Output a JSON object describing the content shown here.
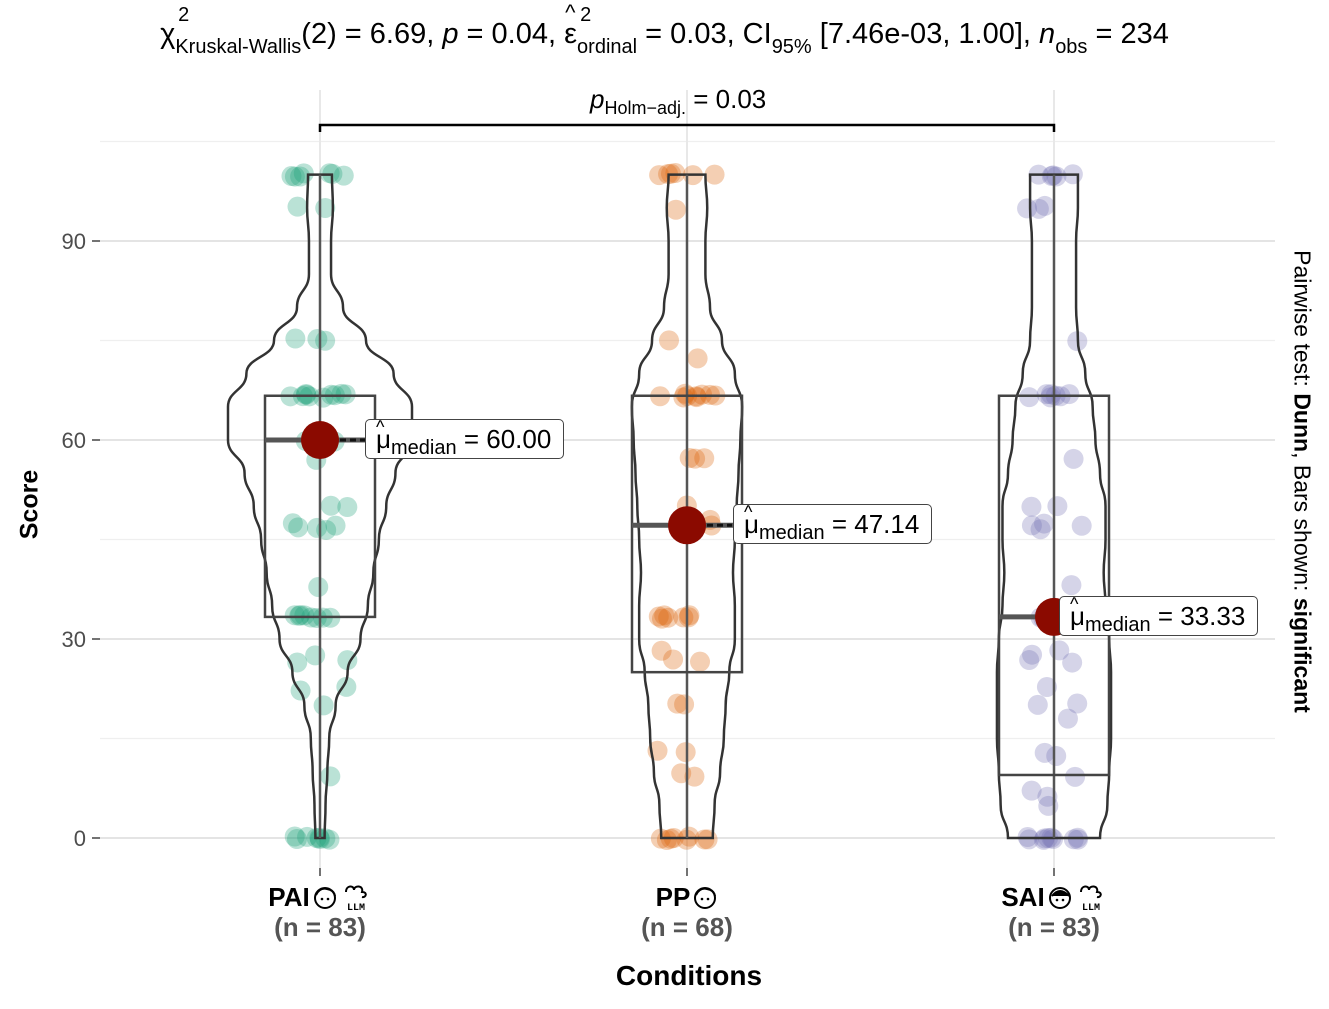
{
  "title": {
    "stat_symbol": "χ",
    "stat_sub": "Kruskal-Wallis",
    "df": "(2) = 6.69, ",
    "p": "p",
    "p_val": " = 0.04, ",
    "eps_sym": "ε",
    "eps_sub": "ordinal",
    "eps_val": " = 0.03, CI",
    "ci_sub": "95%",
    "ci_val": " [7.46e-03, 1.00], ",
    "n": "n",
    "n_sub": "obs",
    "n_val": " = 234"
  },
  "pairwise": {
    "p": "p",
    "sub": "Holm−adj.",
    "val": " = 0.03"
  },
  "side_label": {
    "prefix": "Pairwise test: ",
    "test": "Dunn",
    "middle": ", Bars shown: ",
    "shown": "significant"
  },
  "chart_data": {
    "type": "violin-box",
    "ylabel": "Score",
    "xlabel": "Conditions",
    "ylim": [
      -4,
      108
    ],
    "yticks": [
      0,
      30,
      60,
      90
    ],
    "grid": true,
    "groups": [
      {
        "name": "PAI",
        "n_label": "(n = 83)",
        "color": "#1b9e77",
        "median": 60.0,
        "median_label": "= 60.00",
        "box": {
          "q1": 33.33,
          "median": 60,
          "q3": 66.67,
          "min": 0,
          "max": 100
        },
        "violin": [
          [
            0,
            0.05
          ],
          [
            5,
            0.06
          ],
          [
            10,
            0.08
          ],
          [
            15,
            0.1
          ],
          [
            20,
            0.17
          ],
          [
            25,
            0.3
          ],
          [
            30,
            0.44
          ],
          [
            35,
            0.52
          ],
          [
            40,
            0.58
          ],
          [
            45,
            0.64
          ],
          [
            50,
            0.72
          ],
          [
            55,
            0.82
          ],
          [
            60,
            1.0
          ],
          [
            65,
            1.0
          ],
          [
            70,
            0.8
          ],
          [
            75,
            0.5
          ],
          [
            80,
            0.25
          ],
          [
            85,
            0.12
          ],
          [
            90,
            0.12
          ],
          [
            95,
            0.14
          ],
          [
            100,
            0.13
          ]
        ],
        "points": [
          0,
          0,
          0,
          0,
          0,
          0,
          0,
          0,
          9.5,
          20,
          22.5,
          22.5,
          26.5,
          27,
          27.5,
          33.33,
          33.33,
          33.33,
          33.33,
          33.33,
          33.33,
          33.33,
          33.33,
          38,
          46.5,
          47,
          47,
          47,
          47.5,
          50,
          50,
          57,
          60,
          60,
          60,
          60,
          66.67,
          66.67,
          66.67,
          66.67,
          66.67,
          66.67,
          66.67,
          66.67,
          66.67,
          66.67,
          75,
          75,
          75,
          95,
          95,
          100,
          100,
          100,
          100,
          100,
          100,
          100
        ]
      },
      {
        "name": "PP",
        "n_label": "(n = 68)",
        "color": "#d95f02",
        "median": 47.14,
        "median_label": "= 47.14",
        "box": {
          "q1": 25,
          "median": 47.14,
          "q3": 66.67,
          "min": 0,
          "max": 100
        },
        "violin": [
          [
            0,
            0.28
          ],
          [
            5,
            0.3
          ],
          [
            10,
            0.36
          ],
          [
            15,
            0.4
          ],
          [
            20,
            0.42
          ],
          [
            25,
            0.46
          ],
          [
            30,
            0.52
          ],
          [
            35,
            0.52
          ],
          [
            40,
            0.5
          ],
          [
            45,
            0.52
          ],
          [
            50,
            0.54
          ],
          [
            55,
            0.56
          ],
          [
            60,
            0.58
          ],
          [
            65,
            0.6
          ],
          [
            70,
            0.52
          ],
          [
            75,
            0.38
          ],
          [
            80,
            0.25
          ],
          [
            85,
            0.2
          ],
          [
            90,
            0.2
          ],
          [
            95,
            0.22
          ],
          [
            100,
            0.2
          ]
        ],
        "points": [
          0,
          0,
          0,
          0,
          0,
          0,
          0,
          0,
          9.5,
          10,
          13,
          13,
          20,
          20,
          26.5,
          27,
          28,
          33.33,
          33.33,
          33.33,
          33.33,
          33.33,
          33.33,
          33.33,
          47,
          47,
          47,
          48,
          50,
          57,
          57,
          57,
          66.67,
          66.67,
          66.67,
          66.67,
          66.67,
          66.67,
          66.67,
          66.67,
          66.67,
          72.5,
          75,
          95,
          100,
          100,
          100,
          100,
          100,
          100
        ]
      },
      {
        "name": "SAI",
        "n_label": "(n = 83)",
        "color": "#7570b3",
        "median": 33.33,
        "median_label": "= 33.33",
        "box": {
          "q1": 9.5,
          "median": 33.33,
          "q3": 66.67,
          "min": 0,
          "max": 100
        },
        "violin": [
          [
            0,
            0.5
          ],
          [
            5,
            0.58
          ],
          [
            10,
            0.6
          ],
          [
            15,
            0.62
          ],
          [
            20,
            0.62
          ],
          [
            25,
            0.62
          ],
          [
            30,
            0.6
          ],
          [
            35,
            0.56
          ],
          [
            40,
            0.54
          ],
          [
            45,
            0.56
          ],
          [
            50,
            0.56
          ],
          [
            55,
            0.5
          ],
          [
            60,
            0.45
          ],
          [
            65,
            0.42
          ],
          [
            70,
            0.34
          ],
          [
            75,
            0.26
          ],
          [
            80,
            0.24
          ],
          [
            85,
            0.24
          ],
          [
            90,
            0.24
          ],
          [
            95,
            0.26
          ],
          [
            100,
            0.26
          ]
        ],
        "points": [
          0,
          0,
          0,
          0,
          0,
          0,
          0,
          0,
          0,
          0,
          5,
          6.5,
          7,
          9.5,
          12.5,
          13,
          18,
          20,
          20,
          22.5,
          26.5,
          27,
          27.5,
          28,
          33.33,
          33.33,
          33.33,
          38,
          46.5,
          47,
          47,
          47.5,
          50,
          50,
          57,
          66.67,
          66.67,
          66.67,
          66.67,
          66.67,
          66.67,
          66.67,
          75,
          95,
          95,
          95,
          100,
          100,
          100,
          100,
          100
        ]
      }
    ],
    "comparison": {
      "from": "PAI",
      "to": "SAI",
      "label": "p Holm-adj. = 0.03"
    }
  }
}
